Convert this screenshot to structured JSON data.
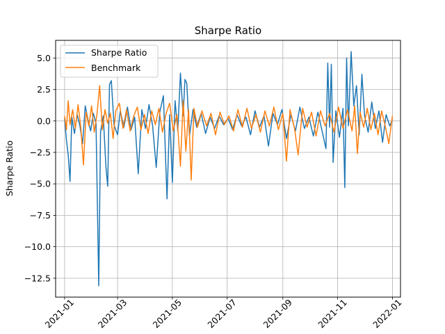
{
  "chart_data": {
    "type": "line",
    "title": "Sharpe Ratio",
    "xlabel": "",
    "ylabel": "Sharpe Ratio",
    "xlim": [
      "2020-12-22",
      "2022-01-10"
    ],
    "ylim": [
      -14.0,
      6.4
    ],
    "x_ticks": [
      "2021-01",
      "2021-03",
      "2021-05",
      "2021-07",
      "2021-09",
      "2021-11",
      "2022-01"
    ],
    "y_ticks": [
      -12.5,
      -10.0,
      -7.5,
      -5.0,
      -2.5,
      0.0,
      2.5,
      5.0
    ],
    "y_tick_labels": [
      "−12.5",
      "−10.0",
      "−7.5",
      "−5.0",
      "−2.5",
      "0.0",
      "2.5",
      "5.0"
    ],
    "grid": true,
    "legend_position": "top-left",
    "colors": {
      "Sharpe Ratio": "#1f77b4",
      "Benchmark": "#ff7f0e"
    },
    "series": [
      {
        "name": "Sharpe Ratio",
        "points": [
          [
            "2021-01-01",
            0.2
          ],
          [
            "2021-01-03",
            -1.5
          ],
          [
            "2021-01-05",
            -2.7
          ],
          [
            "2021-01-07",
            -4.8
          ],
          [
            "2021-01-09",
            0.3
          ],
          [
            "2021-01-12",
            -1.0
          ],
          [
            "2021-01-15",
            0.5
          ],
          [
            "2021-01-18",
            -0.4
          ],
          [
            "2021-01-21",
            -1.8
          ],
          [
            "2021-01-24",
            1.2
          ],
          [
            "2021-01-27",
            0.1
          ],
          [
            "2021-01-30",
            -0.8
          ],
          [
            "2021-02-02",
            0.6
          ],
          [
            "2021-02-05",
            -0.2
          ],
          [
            "2021-02-08",
            -13.1
          ],
          [
            "2021-02-10",
            -0.9
          ],
          [
            "2021-02-13",
            0.4
          ],
          [
            "2021-02-16",
            -3.6
          ],
          [
            "2021-02-18",
            -5.2
          ],
          [
            "2021-02-20",
            2.9
          ],
          [
            "2021-02-22",
            3.2
          ],
          [
            "2021-02-25",
            -0.3
          ],
          [
            "2021-03-01",
            -1.1
          ],
          [
            "2021-03-04",
            0.8
          ],
          [
            "2021-03-08",
            -0.5
          ],
          [
            "2021-03-12",
            1.1
          ],
          [
            "2021-03-16",
            -0.7
          ],
          [
            "2021-03-20",
            0.3
          ],
          [
            "2021-03-24",
            -4.2
          ],
          [
            "2021-03-28",
            0.9
          ],
          [
            "2021-04-01",
            -0.6
          ],
          [
            "2021-04-05",
            1.3
          ],
          [
            "2021-04-09",
            -0.4
          ],
          [
            "2021-04-13",
            -3.7
          ],
          [
            "2021-04-17",
            0.7
          ],
          [
            "2021-04-21",
            2.0
          ],
          [
            "2021-04-25",
            -6.2
          ],
          [
            "2021-04-28",
            0.5
          ],
          [
            "2021-05-01",
            -4.9
          ],
          [
            "2021-05-04",
            1.6
          ],
          [
            "2021-05-07",
            -0.8
          ],
          [
            "2021-05-10",
            3.8
          ],
          [
            "2021-05-13",
            0.4
          ],
          [
            "2021-05-15",
            3.3
          ],
          [
            "2021-05-17",
            3.0
          ],
          [
            "2021-05-20",
            -1.2
          ],
          [
            "2021-05-24",
            0.9
          ],
          [
            "2021-05-28",
            -0.5
          ],
          [
            "2021-06-02",
            0.6
          ],
          [
            "2021-06-07",
            -1.0
          ],
          [
            "2021-06-12",
            0.3
          ],
          [
            "2021-06-17",
            -0.6
          ],
          [
            "2021-06-22",
            0.4
          ],
          [
            "2021-06-27",
            -0.3
          ],
          [
            "2021-07-02",
            0.2
          ],
          [
            "2021-07-07",
            -0.7
          ],
          [
            "2021-07-12",
            0.5
          ],
          [
            "2021-07-17",
            -0.4
          ],
          [
            "2021-07-22",
            0.3
          ],
          [
            "2021-07-27",
            -1.1
          ],
          [
            "2021-08-01",
            0.8
          ],
          [
            "2021-08-06",
            -0.5
          ],
          [
            "2021-08-11",
            0.4
          ],
          [
            "2021-08-16",
            -2.0
          ],
          [
            "2021-08-21",
            0.6
          ],
          [
            "2021-08-26",
            -0.3
          ],
          [
            "2021-08-31",
            0.9
          ],
          [
            "2021-09-05",
            -1.4
          ],
          [
            "2021-09-10",
            0.5
          ],
          [
            "2021-09-15",
            -0.8
          ],
          [
            "2021-09-20",
            1.1
          ],
          [
            "2021-09-25",
            -0.6
          ],
          [
            "2021-09-30",
            0.3
          ],
          [
            "2021-10-05",
            -1.2
          ],
          [
            "2021-10-10",
            0.7
          ],
          [
            "2021-10-15",
            -0.9
          ],
          [
            "2021-10-19",
            -2.2
          ],
          [
            "2021-10-21",
            4.6
          ],
          [
            "2021-10-23",
            -0.5
          ],
          [
            "2021-10-25",
            4.5
          ],
          [
            "2021-10-27",
            -3.3
          ],
          [
            "2021-10-30",
            0.8
          ],
          [
            "2021-11-03",
            -1.3
          ],
          [
            "2021-11-07",
            1.0
          ],
          [
            "2021-11-09",
            -5.3
          ],
          [
            "2021-11-11",
            5.0
          ],
          [
            "2021-11-13",
            -0.4
          ],
          [
            "2021-11-16",
            5.5
          ],
          [
            "2021-11-19",
            1.2
          ],
          [
            "2021-11-22",
            2.8
          ],
          [
            "2021-11-25",
            -1.1
          ],
          [
            "2021-11-28",
            3.7
          ],
          [
            "2021-12-01",
            0.4
          ],
          [
            "2021-12-05",
            -0.9
          ],
          [
            "2021-12-09",
            1.5
          ],
          [
            "2021-12-13",
            -0.6
          ],
          [
            "2021-12-17",
            0.8
          ],
          [
            "2021-12-21",
            -1.7
          ],
          [
            "2021-12-25",
            0.5
          ],
          [
            "2021-12-29",
            -0.4
          ],
          [
            "2022-01-01",
            0.1
          ]
        ]
      },
      {
        "name": "Benchmark",
        "points": [
          [
            "2021-01-01",
            0.4
          ],
          [
            "2021-01-03",
            -0.7
          ],
          [
            "2021-01-05",
            1.6
          ],
          [
            "2021-01-07",
            -0.3
          ],
          [
            "2021-01-10",
            0.9
          ],
          [
            "2021-01-13",
            -0.6
          ],
          [
            "2021-01-16",
            1.3
          ],
          [
            "2021-01-19",
            -0.5
          ],
          [
            "2021-01-22",
            -3.5
          ],
          [
            "2021-01-25",
            0.7
          ],
          [
            "2021-01-28",
            -0.4
          ],
          [
            "2021-01-31",
            1.2
          ],
          [
            "2021-02-03",
            -0.9
          ],
          [
            "2021-02-06",
            0.5
          ],
          [
            "2021-02-09",
            2.8
          ],
          [
            "2021-02-12",
            -0.7
          ],
          [
            "2021-02-15",
            0.9
          ],
          [
            "2021-02-18",
            -0.2
          ],
          [
            "2021-02-21",
            0.6
          ],
          [
            "2021-02-24",
            -1.4
          ],
          [
            "2021-02-27",
            0.8
          ],
          [
            "2021-03-03",
            1.4
          ],
          [
            "2021-03-07",
            -0.6
          ],
          [
            "2021-03-11",
            0.9
          ],
          [
            "2021-03-15",
            -0.8
          ],
          [
            "2021-03-19",
            0.4
          ],
          [
            "2021-03-23",
            1.1
          ],
          [
            "2021-03-27",
            -0.7
          ],
          [
            "2021-03-31",
            0.5
          ],
          [
            "2021-04-04",
            -1.0
          ],
          [
            "2021-04-08",
            0.8
          ],
          [
            "2021-04-12",
            -0.3
          ],
          [
            "2021-04-16",
            1.0
          ],
          [
            "2021-04-20",
            -0.9
          ],
          [
            "2021-04-24",
            0.6
          ],
          [
            "2021-04-28",
            1.4
          ],
          [
            "2021-05-02",
            -0.8
          ],
          [
            "2021-05-06",
            0.5
          ],
          [
            "2021-05-10",
            -3.6
          ],
          [
            "2021-05-13",
            1.6
          ],
          [
            "2021-05-16",
            -2.4
          ],
          [
            "2021-05-19",
            0.9
          ],
          [
            "2021-05-22",
            -4.7
          ],
          [
            "2021-05-25",
            1.0
          ],
          [
            "2021-05-29",
            -0.5
          ],
          [
            "2021-06-03",
            0.8
          ],
          [
            "2021-06-08",
            -0.4
          ],
          [
            "2021-06-13",
            0.6
          ],
          [
            "2021-06-18",
            -1.1
          ],
          [
            "2021-06-23",
            0.7
          ],
          [
            "2021-06-28",
            -0.3
          ],
          [
            "2021-07-03",
            0.4
          ],
          [
            "2021-07-08",
            -0.8
          ],
          [
            "2021-07-13",
            0.9
          ],
          [
            "2021-07-18",
            -0.5
          ],
          [
            "2021-07-23",
            1.0
          ],
          [
            "2021-07-28",
            -0.6
          ],
          [
            "2021-08-02",
            0.5
          ],
          [
            "2021-08-07",
            -0.9
          ],
          [
            "2021-08-12",
            0.8
          ],
          [
            "2021-08-17",
            -0.4
          ],
          [
            "2021-08-22",
            1.1
          ],
          [
            "2021-08-27",
            -0.7
          ],
          [
            "2021-09-01",
            0.6
          ],
          [
            "2021-09-05",
            -3.2
          ],
          [
            "2021-09-09",
            0.9
          ],
          [
            "2021-09-14",
            -0.6
          ],
          [
            "2021-09-18",
            -2.7
          ],
          [
            "2021-09-23",
            1.0
          ],
          [
            "2021-09-28",
            -0.5
          ],
          [
            "2021-10-03",
            0.7
          ],
          [
            "2021-10-08",
            -1.2
          ],
          [
            "2021-10-13",
            0.8
          ],
          [
            "2021-10-18",
            -0.4
          ],
          [
            "2021-10-23",
            0.6
          ],
          [
            "2021-10-28",
            -0.9
          ],
          [
            "2021-11-02",
            1.1
          ],
          [
            "2021-11-07",
            -0.6
          ],
          [
            "2021-11-12",
            0.9
          ],
          [
            "2021-11-17",
            -0.8
          ],
          [
            "2021-11-20",
            1.2
          ],
          [
            "2021-11-23",
            -2.6
          ],
          [
            "2021-11-26",
            0.7
          ],
          [
            "2021-11-30",
            -0.5
          ],
          [
            "2021-12-04",
            1.0
          ],
          [
            "2021-12-08",
            -0.7
          ],
          [
            "2021-12-12",
            0.6
          ],
          [
            "2021-12-16",
            -1.1
          ],
          [
            "2021-12-20",
            0.8
          ],
          [
            "2021-12-24",
            -0.4
          ],
          [
            "2021-12-28",
            -1.8
          ],
          [
            "2022-01-01",
            0.4
          ]
        ]
      }
    ]
  }
}
